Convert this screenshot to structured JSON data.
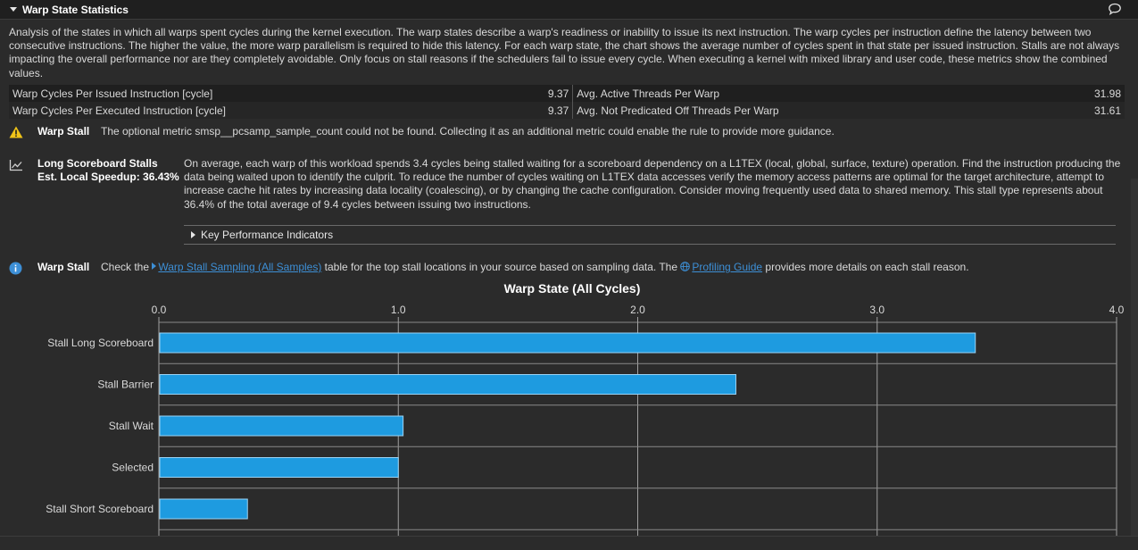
{
  "section": {
    "title": "Warp State Statistics"
  },
  "description": "Analysis of the states in which all warps spent cycles during the kernel execution. The warp states describe a warp's readiness or inability to issue its next instruction. The warp cycles per instruction define the latency between two consecutive instructions. The higher the value, the more warp parallelism is required to hide this latency. For each warp state, the chart shows the average number of cycles spent in that state per issued instruction. Stalls are not always impacting the overall performance nor are they completely avoidable. Only focus on stall reasons if the schedulers fail to issue every cycle. When executing a kernel with mixed library and user code, these metrics show the combined values.",
  "metrics": [
    {
      "name": "Warp Cycles Per Issued Instruction [cycle]",
      "value": "9.37",
      "name2": "Avg. Active Threads Per Warp",
      "value2": "31.98"
    },
    {
      "name": "Warp Cycles Per Executed Instruction [cycle]",
      "value": "9.37",
      "name2": "Avg. Not Predicated Off Threads Per Warp",
      "value2": "31.61"
    }
  ],
  "warning_rule": {
    "name": "Warp Stall",
    "text": "The optional metric smsp__pcsamp_sample_count could not be found. Collecting it as an additional metric could enable the rule to provide more guidance."
  },
  "long_scoreboard": {
    "title": "Long Scoreboard Stalls",
    "speedup": "Est. Local Speedup: 36.43%",
    "text": "On average, each warp of this workload spends 3.4 cycles being stalled waiting for a scoreboard dependency on a L1TEX (local, global, surface, texture) operation. Find the instruction producing the data being waited upon to identify the culprit. To reduce the number of cycles waiting on L1TEX data accesses verify the memory access patterns are optimal for the target architecture, attempt to increase cache hit rates by increasing data locality (coalescing), or by changing the cache configuration. Consider moving frequently used data to shared memory. This stall type represents about 36.4% of the total average of 9.4 cycles between issuing two instructions.",
    "kpi_label": "Key Performance Indicators"
  },
  "info_rule": {
    "name": "Warp Stall",
    "text_before": "Check the ",
    "link1": "Warp Stall Sampling (All Samples)",
    "text_middle": " table for the top stall locations in your source based on sampling data. The ",
    "link2": "Profiling Guide",
    "text_after": " provides more details on each stall reason."
  },
  "colors": {
    "bar": "#1e9be0",
    "link": "#3d8fd6",
    "warning": "#f0c419"
  },
  "chart_data": {
    "type": "bar",
    "orientation": "horizontal",
    "title": "Warp State (All Cycles)",
    "categories": [
      "Stall Long Scoreboard",
      "Stall Barrier",
      "Stall Wait",
      "Selected",
      "Stall Short Scoreboard"
    ],
    "values": [
      3.41,
      2.41,
      1.02,
      1.0,
      0.37
    ],
    "xlim": [
      0.0,
      4.0
    ],
    "xticks": [
      "0.0",
      "1.0",
      "2.0",
      "3.0",
      "4.0"
    ],
    "grid": true
  }
}
